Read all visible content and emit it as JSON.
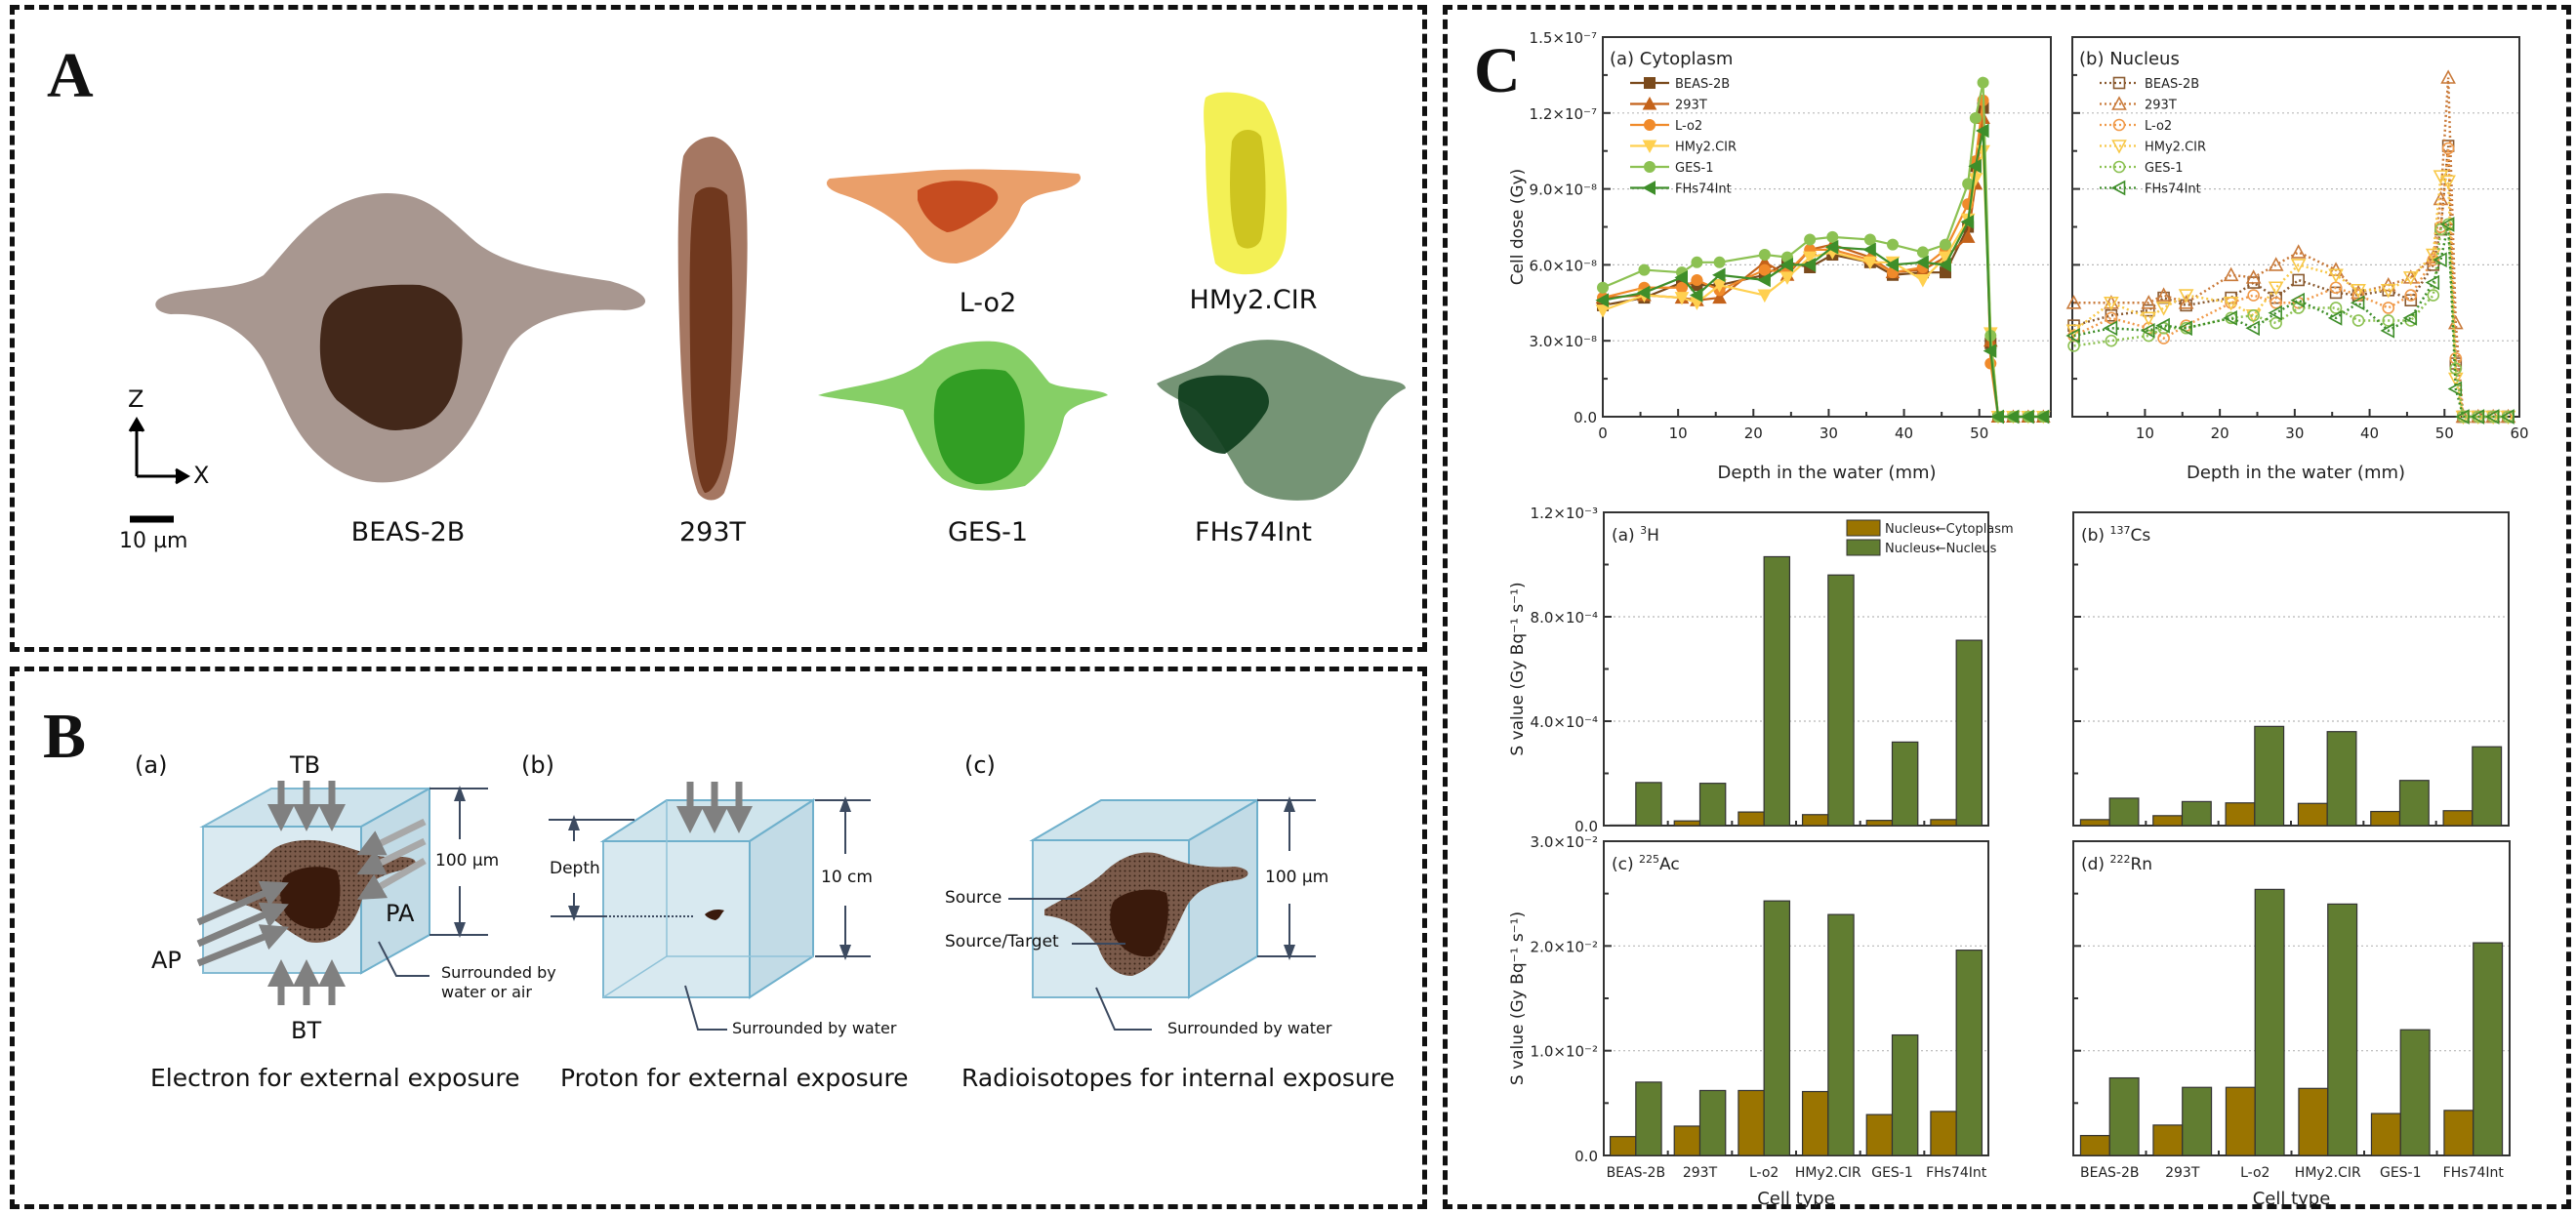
{
  "panel_a": {
    "letter": "A",
    "axis_z": "Z",
    "axis_x": "X",
    "scale_bar": "10 µm",
    "cells": [
      {
        "name": "BEAS-2B",
        "cyto_color": "#a3918a",
        "nuc_color": "#3b1e10"
      },
      {
        "name": "293T",
        "cyto_color": "#a0705a",
        "nuc_color": "#6b3318"
      },
      {
        "name": "L-o2",
        "cyto_color": "#e99a62",
        "nuc_color": "#c2441a"
      },
      {
        "name": "HMy2.CIR",
        "cyto_color": "#f2ef4c",
        "nuc_color": "#cbc11c"
      },
      {
        "name": "GES-1",
        "cyto_color": "#7fcc5e",
        "nuc_color": "#2b9a1e"
      },
      {
        "name": "FHs74Int",
        "cyto_color": "#6e8e6e",
        "nuc_color": "#0e3d1c"
      }
    ]
  },
  "panel_b": {
    "letter": "B",
    "sub_a": {
      "label": "(a)",
      "tb": "TB",
      "bt": "BT",
      "ap": "AP",
      "pa": "PA",
      "dimension": "100 µm",
      "surround_line1": "Surrounded by",
      "surround_line2": "water or air",
      "caption": "Electron for external exposure"
    },
    "sub_b": {
      "label": "(b)",
      "depth": "Depth",
      "dimension": "10 cm",
      "surround": "Surrounded by water",
      "caption": "Proton for external exposure"
    },
    "sub_c": {
      "label": "(c)",
      "source": "Source",
      "source_target": "Source/Target",
      "dimension": "100 µm",
      "surround": "Surrounded by water",
      "caption": "Radioisotopes for internal exposure"
    }
  },
  "panel_c": {
    "letter": "C"
  },
  "chart_data": [
    {
      "id": "cytoplasm",
      "type": "line",
      "title": "(a) Cytoplasm",
      "xlabel": "Depth in the water (mm)",
      "ylabel": "Cell dose (Gy)",
      "xlim": [
        0,
        59.5
      ],
      "ylim": [
        0,
        1.5e-07
      ],
      "xticks": [
        0,
        10,
        20,
        30,
        40,
        50
      ],
      "xtick_labels": [
        "0",
        "10",
        "20",
        "30",
        "40",
        "50"
      ],
      "yticks": [
        0,
        3e-08,
        6e-08,
        9e-08,
        1.2e-07,
        1.5e-07
      ],
      "ytick_labels": [
        "0.0",
        "3.0×10⁻⁸",
        "6.0×10⁻⁸",
        "9.0×10⁻⁸",
        "1.2×10⁻⁷",
        "1.5×10⁻⁷"
      ],
      "grid": "horizontal-dotted",
      "legend_position": "top-left",
      "line_style": "solid",
      "x": [
        0,
        5.5,
        10.5,
        12.5,
        15.5,
        21.5,
        24.5,
        27.5,
        30.5,
        35.5,
        38.5,
        42.5,
        45.5,
        48.5,
        49.5,
        50.5,
        51.5,
        52.5,
        54.5,
        56.5,
        58.5
      ],
      "series": [
        {
          "name": "BEAS-2B",
          "color": "#7a4a1c",
          "marker": "square",
          "values": [
            4.4e-08,
            4.7e-08,
            5.3e-08,
            5.2e-08,
            5.2e-08,
            5.6e-08,
            6.1e-08,
            5.9e-08,
            6.4e-08,
            6.1e-08,
            5.6e-08,
            5.7e-08,
            5.7e-08,
            7.5e-08,
            9.9e-08,
            1.22e-07,
            2.9e-08,
            0,
            0,
            0,
            0
          ]
        },
        {
          "name": "293T",
          "color": "#c4621a",
          "marker": "triangle-up",
          "values": [
            4.7e-08,
            4.8e-08,
            4.7e-08,
            4.6e-08,
            4.7e-08,
            6.1e-08,
            5.6e-08,
            6.6e-08,
            6.8e-08,
            6.3e-08,
            5.7e-08,
            5.8e-08,
            6.3e-08,
            7.1e-08,
            9.2e-08,
            1.18e-07,
            3e-08,
            0,
            0,
            0,
            0
          ]
        },
        {
          "name": "L-o2",
          "color": "#f08a2a",
          "marker": "circle",
          "values": [
            4.7e-08,
            5.1e-08,
            5.1e-08,
            5.4e-08,
            5e-08,
            5.8e-08,
            5.7e-08,
            6.6e-08,
            6.6e-08,
            6.2e-08,
            5.7e-08,
            5.9e-08,
            6.6e-08,
            8.4e-08,
            1.01e-07,
            1.25e-07,
            2.1e-08,
            0,
            0,
            0,
            0
          ]
        },
        {
          "name": "HMy2.CIR",
          "color": "#ffd050",
          "marker": "triangle-down",
          "values": [
            4.2e-08,
            4.8e-08,
            4.7e-08,
            4.5e-08,
            5.2e-08,
            4.8e-08,
            5.5e-08,
            6.3e-08,
            6.5e-08,
            6.1e-08,
            6.1e-08,
            5.4e-08,
            6.3e-08,
            7.8e-08,
            9.4e-08,
            1.05e-07,
            3.3e-08,
            0,
            0,
            0,
            0
          ]
        },
        {
          "name": "GES-1",
          "color": "#8cc152",
          "marker": "circle",
          "values": [
            5.1e-08,
            5.8e-08,
            5.7e-08,
            6.1e-08,
            6.1e-08,
            6.4e-08,
            6.3e-08,
            7e-08,
            7.1e-08,
            7e-08,
            6.8e-08,
            6.5e-08,
            6.8e-08,
            9.2e-08,
            1.18e-07,
            1.32e-07,
            3.2e-08,
            0,
            0,
            0,
            0
          ]
        },
        {
          "name": "FHs74Int",
          "color": "#3e8e2a",
          "marker": "triangle-left",
          "values": [
            4.6e-08,
            4.9e-08,
            5.5e-08,
            4.8e-08,
            5.6e-08,
            5.4e-08,
            6e-08,
            6e-08,
            6.7e-08,
            6.6e-08,
            6e-08,
            6.1e-08,
            6e-08,
            7.7e-08,
            9.9e-08,
            1.13e-07,
            2.6e-08,
            0,
            0,
            0,
            0
          ]
        }
      ]
    },
    {
      "id": "nucleus",
      "type": "line",
      "title": "(b) Nucleus",
      "xlabel": "Depth in the water (mm)",
      "ylabel": "",
      "xlim": [
        0.3,
        60
      ],
      "ylim": [
        0,
        1.5e-07
      ],
      "xticks": [
        10,
        20,
        30,
        40,
        50,
        60
      ],
      "xtick_labels": [
        "10",
        "20",
        "30",
        "40",
        "50",
        "60"
      ],
      "yticks": [
        0,
        3e-08,
        6e-08,
        9e-08,
        1.2e-07,
        1.5e-07
      ],
      "ytick_labels": [],
      "grid": "horizontal-dotted",
      "legend_position": "top-left",
      "line_style": "dotted",
      "x": [
        0.5,
        5.5,
        10.5,
        12.5,
        15.5,
        21.5,
        24.5,
        27.5,
        30.5,
        35.5,
        38.5,
        42.5,
        45.5,
        48.5,
        49.5,
        50.5,
        51.5,
        52.5,
        54.5,
        56.5,
        58.5
      ],
      "series": [
        {
          "name": "BEAS-2B",
          "color": "#8a5a30",
          "marker": "square-open",
          "values": [
            3.6e-08,
            4e-08,
            4.2e-08,
            4.7e-08,
            4.4e-08,
            4.7e-08,
            5.3e-08,
            4.7e-08,
            5.4e-08,
            4.9e-08,
            4.8e-08,
            5e-08,
            4.6e-08,
            6e-08,
            7.4e-08,
            1.07e-07,
            2.1e-08,
            0,
            0,
            0,
            0
          ]
        },
        {
          "name": "293T",
          "color": "#c97a3a",
          "marker": "triangle-up-open",
          "values": [
            4.5e-08,
            4.5e-08,
            4.5e-08,
            4.8e-08,
            4.5e-08,
            5.6e-08,
            5.5e-08,
            6e-08,
            6.5e-08,
            5.8e-08,
            4.9e-08,
            5.2e-08,
            5.5e-08,
            6.3e-08,
            8.6e-08,
            1.34e-07,
            3.7e-08,
            0,
            0,
            0,
            0
          ]
        },
        {
          "name": "L-o2",
          "color": "#f09a4a",
          "marker": "circle-open",
          "values": [
            3.2e-08,
            3.9e-08,
            3.5e-08,
            3.1e-08,
            3.6e-08,
            4.5e-08,
            4.8e-08,
            4.5e-08,
            4.5e-08,
            5.1e-08,
            4.8e-08,
            4.3e-08,
            4.8e-08,
            6.2e-08,
            7.5e-08,
            1.06e-07,
            2.3e-08,
            0,
            0,
            0,
            0
          ]
        },
        {
          "name": "HMy2.CIR",
          "color": "#f8c848",
          "marker": "triangle-down-open",
          "values": [
            3.4e-08,
            4.5e-08,
            3.9e-08,
            4.3e-08,
            4.8e-08,
            4.5e-08,
            4e-08,
            5.1e-08,
            6e-08,
            5.6e-08,
            5e-08,
            5e-08,
            5.5e-08,
            6.4e-08,
            9.5e-08,
            9.3e-08,
            1.5e-08,
            0,
            0,
            0,
            0
          ]
        },
        {
          "name": "GES-1",
          "color": "#8cc152",
          "marker": "circle-open",
          "values": [
            2.8e-08,
            3e-08,
            3.2e-08,
            3.5e-08,
            3.5e-08,
            3.9e-08,
            4e-08,
            3.7e-08,
            4.3e-08,
            4.3e-08,
            3.8e-08,
            3.8e-08,
            3.8e-08,
            4.8e-08,
            7.4e-08,
            7.6e-08,
            1.9e-08,
            0,
            0,
            0,
            0
          ]
        },
        {
          "name": "FHs74Int",
          "color": "#3e8e2a",
          "marker": "triangle-left-open",
          "values": [
            3.2e-08,
            3.5e-08,
            3.4e-08,
            3.6e-08,
            3.5e-08,
            3.9e-08,
            3.5e-08,
            4.1e-08,
            4.6e-08,
            3.9e-08,
            4.5e-08,
            3.4e-08,
            3.9e-08,
            5.3e-08,
            6.2e-08,
            7.6e-08,
            1.1e-08,
            0,
            0,
            0,
            0
          ]
        }
      ]
    },
    {
      "id": "h3",
      "type": "bar",
      "title": "(a) ",
      "isotope_mass": "3",
      "isotope_symbol": "H",
      "xlabel": "",
      "ylabel": "S value (Gy Bq⁻¹ s⁻¹)",
      "ylim": [
        0,
        0.0012
      ],
      "yticks": [
        0,
        0.0004,
        0.0008,
        0.0012
      ],
      "ytick_labels": [
        "0.0",
        "4.0×10⁻⁴",
        "8.0×10⁻⁴",
        "1.2×10⁻³"
      ],
      "grid": "horizontal-dotted",
      "legend_position": "top-right",
      "categories": [
        "BEAS-2B",
        "293T",
        "L-o2",
        "HMy2.CIR",
        "GES-1",
        "FHs74Int"
      ],
      "series": [
        {
          "name": "Nucleus←Cytoplasm",
          "color": "#9a7400",
          "values": [
            2e-06,
            1.8e-05,
            5.2e-05,
            4.2e-05,
            2e-05,
            2.3e-05
          ]
        },
        {
          "name": "Nucleus←Nucleus",
          "color": "#617d31",
          "values": [
            0.000165,
            0.000162,
            0.00103,
            0.00096,
            0.00032,
            0.00071
          ]
        }
      ]
    },
    {
      "id": "cs137",
      "type": "bar",
      "title": "(b) ",
      "isotope_mass": "137",
      "isotope_symbol": "Cs",
      "xlabel": "",
      "ylabel": "",
      "ylim": [
        0,
        0.0012
      ],
      "yticks": [
        0,
        0.0004,
        0.0008,
        0.0012
      ],
      "ytick_labels": [],
      "grid": "horizontal-dotted",
      "categories": [
        "BEAS-2B",
        "293T",
        "L-o2",
        "HMy2.CIR",
        "GES-1",
        "FHs74Int"
      ],
      "series": [
        {
          "name": "Nucleus←Cytoplasm",
          "color": "#9a7400",
          "values": [
            2.3e-05,
            3.8e-05,
            8.7e-05,
            8.5e-05,
            5.4e-05,
            5.7e-05
          ]
        },
        {
          "name": "Nucleus←Nucleus",
          "color": "#617d31",
          "values": [
            0.000105,
            9.2e-05,
            0.00038,
            0.00036,
            0.000173,
            0.000302
          ]
        }
      ]
    },
    {
      "id": "ac225",
      "type": "bar",
      "title": "(c) ",
      "isotope_mass": "225",
      "isotope_symbol": "Ac",
      "xlabel": "Cell type",
      "ylabel": "S value (Gy Bq⁻¹ s⁻¹)",
      "ylim": [
        0,
        0.03
      ],
      "yticks": [
        0,
        0.01,
        0.02,
        0.03
      ],
      "ytick_labels": [
        "0.0",
        "1.0×10⁻²",
        "2.0×10⁻²",
        "3.0×10⁻²"
      ],
      "grid": "horizontal-dotted",
      "categories": [
        "BEAS-2B",
        "293T",
        "L-o2",
        "HMy2.CIR",
        "GES-1",
        "FHs74Int"
      ],
      "series": [
        {
          "name": "Nucleus←Cytoplasm",
          "color": "#9a7400",
          "values": [
            0.0018,
            0.0028,
            0.0062,
            0.0061,
            0.0039,
            0.0042
          ]
        },
        {
          "name": "Nucleus←Nucleus",
          "color": "#617d31",
          "values": [
            0.007,
            0.0062,
            0.0243,
            0.023,
            0.0115,
            0.0196
          ]
        }
      ]
    },
    {
      "id": "rn222",
      "type": "bar",
      "title": "(d) ",
      "isotope_mass": "222",
      "isotope_symbol": "Rn",
      "xlabel": "Cell type",
      "ylabel": "",
      "ylim": [
        0,
        0.03
      ],
      "yticks": [
        0,
        0.01,
        0.02,
        0.03
      ],
      "ytick_labels": [],
      "grid": "horizontal-dotted",
      "categories": [
        "BEAS-2B",
        "293T",
        "L-o2",
        "HMy2.CIR",
        "GES-1",
        "FHs74Int"
      ],
      "series": [
        {
          "name": "Nucleus←Cytoplasm",
          "color": "#9a7400",
          "values": [
            0.0019,
            0.0029,
            0.0065,
            0.0064,
            0.004,
            0.0043
          ]
        },
        {
          "name": "Nucleus←Nucleus",
          "color": "#617d31",
          "values": [
            0.0074,
            0.0065,
            0.0254,
            0.024,
            0.012,
            0.0203
          ]
        }
      ]
    }
  ]
}
